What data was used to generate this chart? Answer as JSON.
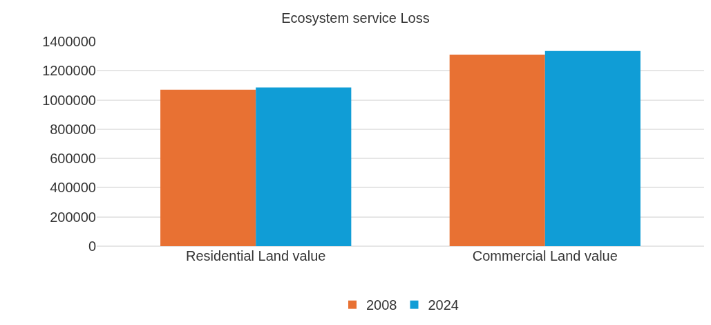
{
  "chart_data": {
    "type": "bar",
    "title": "Ecosystem service Loss",
    "categories": [
      "Residential Land value",
      "Commercial Land value"
    ],
    "series": [
      {
        "name": "2008",
        "color": "#e87133",
        "values": [
          1070000,
          1310000
        ]
      },
      {
        "name": "2024",
        "color": "#109dd6",
        "values": [
          1085000,
          1335000
        ]
      }
    ],
    "ylim": [
      0,
      1400000
    ],
    "yticks": [
      0,
      200000,
      400000,
      600000,
      800000,
      1000000,
      1200000,
      1400000
    ],
    "grid": "y",
    "legend": "bottom"
  }
}
